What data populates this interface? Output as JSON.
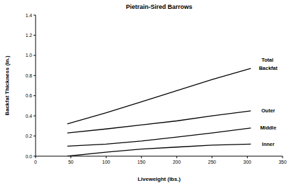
{
  "chart_data": {
    "type": "line",
    "title": "Pietrain-Sired Barrows",
    "x_label": "Liveweight (lbs.)",
    "y_label": "Backfat Thickness (in.)",
    "x": [
      45,
      100,
      150,
      200,
      250,
      305
    ],
    "series": [
      {
        "name": "Total Backfat",
        "color": "#000000",
        "values": [
          0.32,
          0.43,
          0.54,
          0.65,
          0.76,
          0.87
        ]
      },
      {
        "name": "Outer",
        "color": "#000000",
        "values": [
          0.23,
          0.27,
          0.31,
          0.35,
          0.4,
          0.45
        ]
      },
      {
        "name": "Middle",
        "color": "#000000",
        "values": [
          0.1,
          0.12,
          0.15,
          0.19,
          0.23,
          0.28
        ]
      },
      {
        "name": "Inner",
        "color": "#000000",
        "values": [
          0.0,
          0.04,
          0.07,
          0.09,
          0.11,
          0.12
        ]
      }
    ],
    "xlim": [
      0,
      350
    ],
    "xticks": [
      0,
      50,
      100,
      150,
      200,
      250,
      300,
      350
    ],
    "ylim": [
      0,
      1.4
    ],
    "yticks": [
      {
        "value": 0,
        "label": "0.0"
      },
      {
        "value": 0.2,
        "label": "0.2"
      },
      {
        "value": 0.4,
        "label": "0.4"
      },
      {
        "value": 0.6,
        "label": "0.6"
      },
      {
        "value": 0.8,
        "label": "0.8"
      },
      {
        "value": 1.0,
        "label": "1.0"
      },
      {
        "value": 1.2,
        "label": "1.2"
      },
      {
        "value": 1.4,
        "label": "1.4"
      }
    ],
    "grid": false
  }
}
